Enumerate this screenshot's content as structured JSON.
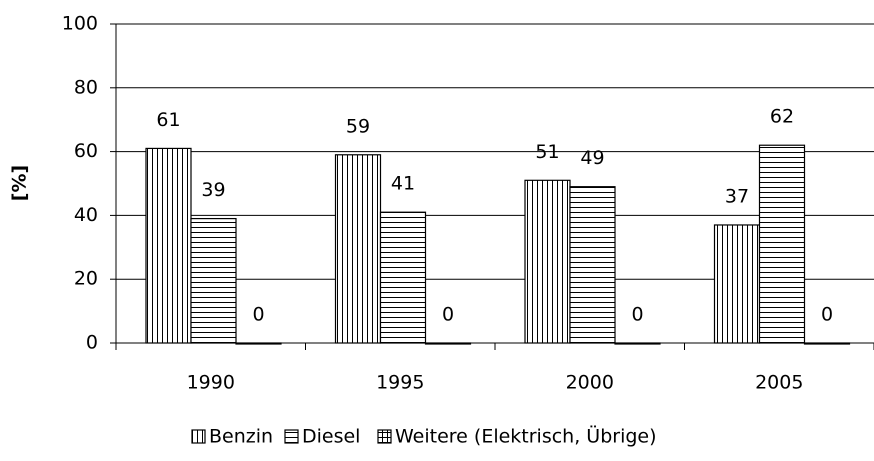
{
  "chart_data": {
    "type": "bar",
    "y_label": "[%]",
    "categories": [
      "1990",
      "1995",
      "2000",
      "2005"
    ],
    "series": [
      {
        "name": "Benzin",
        "color": "#000000",
        "pattern": "vertical",
        "values": [
          61,
          59,
          51,
          37
        ]
      },
      {
        "name": "Diesel",
        "color": "#000000",
        "pattern": "horizontal",
        "values": [
          39,
          41,
          49,
          62
        ]
      },
      {
        "name": "Weitere (Elektrisch, Übrige)",
        "color": "#000000",
        "pattern": "grid",
        "values": [
          0,
          0,
          0,
          0
        ]
      }
    ],
    "ylim": [
      0,
      100
    ],
    "yticks": [
      0,
      20,
      40,
      60,
      80,
      100
    ],
    "grid": true,
    "legend": "bottom"
  }
}
